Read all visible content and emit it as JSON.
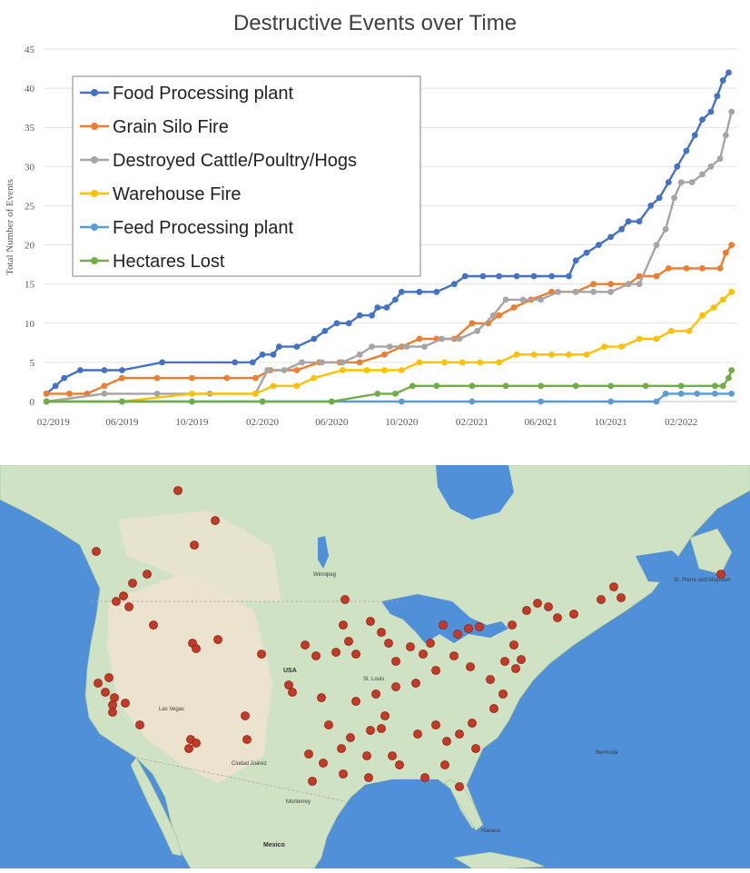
{
  "chart_data": {
    "type": "line",
    "title": "Destructive Events over Time",
    "ylabel": "Total Number of Events",
    "xlabel": "",
    "ylim": [
      0,
      45
    ],
    "yticks": [
      0,
      5,
      10,
      15,
      20,
      25,
      30,
      35,
      40,
      45
    ],
    "xlim": [
      "2019-01-15",
      "2022-05-10"
    ],
    "xticks": [
      "02/2019",
      "06/2019",
      "10/2019",
      "02/2020",
      "06/2020",
      "10/2020",
      "02/2021",
      "06/2021",
      "10/2021",
      "02/2022"
    ],
    "xtick_dates": [
      "2019-02-01",
      "2019-06-01",
      "2019-10-01",
      "2020-02-01",
      "2020-06-01",
      "2020-10-01",
      "2021-02-01",
      "2021-06-01",
      "2021-10-01",
      "2022-02-01"
    ],
    "grid": "horizontal",
    "legend_position": "top-left",
    "series": [
      {
        "name": "Food Processing plant",
        "color": "#4472c4",
        "points": [
          [
            "2019-01-20",
            1
          ],
          [
            "2019-02-05",
            2
          ],
          [
            "2019-02-20",
            3
          ],
          [
            "2019-03-20",
            4
          ],
          [
            "2019-05-01",
            4
          ],
          [
            "2019-06-01",
            4
          ],
          [
            "2019-08-10",
            5
          ],
          [
            "2019-12-15",
            5
          ],
          [
            "2020-01-15",
            5
          ],
          [
            "2020-02-01",
            6
          ],
          [
            "2020-02-20",
            6
          ],
          [
            "2020-03-01",
            7
          ],
          [
            "2020-04-01",
            7
          ],
          [
            "2020-05-01",
            8
          ],
          [
            "2020-05-20",
            9
          ],
          [
            "2020-06-10",
            10
          ],
          [
            "2020-07-01",
            10
          ],
          [
            "2020-07-20",
            11
          ],
          [
            "2020-08-10",
            11
          ],
          [
            "2020-08-20",
            12
          ],
          [
            "2020-09-05",
            12
          ],
          [
            "2020-09-20",
            13
          ],
          [
            "2020-10-01",
            14
          ],
          [
            "2020-11-01",
            14
          ],
          [
            "2020-12-01",
            14
          ],
          [
            "2021-01-01",
            15
          ],
          [
            "2021-01-20",
            16
          ],
          [
            "2021-02-20",
            16
          ],
          [
            "2021-03-20",
            16
          ],
          [
            "2021-04-20",
            16
          ],
          [
            "2021-05-20",
            16
          ],
          [
            "2021-06-20",
            16
          ],
          [
            "2021-07-20",
            16
          ],
          [
            "2021-08-01",
            18
          ],
          [
            "2021-08-20",
            19
          ],
          [
            "2021-09-10",
            20
          ],
          [
            "2021-10-01",
            21
          ],
          [
            "2021-10-20",
            22
          ],
          [
            "2021-11-01",
            23
          ],
          [
            "2021-11-20",
            23
          ],
          [
            "2021-12-10",
            25
          ],
          [
            "2021-12-25",
            26
          ],
          [
            "2022-01-10",
            28
          ],
          [
            "2022-01-25",
            30
          ],
          [
            "2022-02-10",
            32
          ],
          [
            "2022-02-25",
            34
          ],
          [
            "2022-03-10",
            36
          ],
          [
            "2022-03-25",
            37
          ],
          [
            "2022-04-05",
            39
          ],
          [
            "2022-04-15",
            41
          ],
          [
            "2022-04-25",
            42
          ]
        ]
      },
      {
        "name": "Grain Silo Fire",
        "color": "#ed7d31",
        "points": [
          [
            "2019-01-20",
            1
          ],
          [
            "2019-03-01",
            1
          ],
          [
            "2019-04-01",
            1
          ],
          [
            "2019-05-01",
            2
          ],
          [
            "2019-06-01",
            3
          ],
          [
            "2019-08-01",
            3
          ],
          [
            "2019-10-01",
            3
          ],
          [
            "2019-12-01",
            3
          ],
          [
            "2020-01-20",
            3
          ],
          [
            "2020-02-15",
            4
          ],
          [
            "2020-04-01",
            4
          ],
          [
            "2020-05-10",
            5
          ],
          [
            "2020-06-15",
            5
          ],
          [
            "2020-07-20",
            5
          ],
          [
            "2020-09-01",
            6
          ],
          [
            "2020-10-01",
            7
          ],
          [
            "2020-11-01",
            8
          ],
          [
            "2020-12-01",
            8
          ],
          [
            "2021-01-01",
            8
          ],
          [
            "2021-02-01",
            10
          ],
          [
            "2021-03-01",
            10
          ],
          [
            "2021-03-20",
            11
          ],
          [
            "2021-04-15",
            12
          ],
          [
            "2021-05-15",
            13
          ],
          [
            "2021-06-20",
            14
          ],
          [
            "2021-08-01",
            14
          ],
          [
            "2021-09-01",
            15
          ],
          [
            "2021-10-01",
            15
          ],
          [
            "2021-11-01",
            15
          ],
          [
            "2021-11-20",
            16
          ],
          [
            "2021-12-20",
            16
          ],
          [
            "2022-01-10",
            17
          ],
          [
            "2022-02-10",
            17
          ],
          [
            "2022-03-10",
            17
          ],
          [
            "2022-04-10",
            17
          ],
          [
            "2022-04-20",
            19
          ],
          [
            "2022-04-30",
            20
          ]
        ]
      },
      {
        "name": "Destroyed Cattle/Poultry/Hogs",
        "color": "#a5a5a5",
        "points": [
          [
            "2019-01-20",
            0
          ],
          [
            "2019-05-01",
            1
          ],
          [
            "2019-08-01",
            1
          ],
          [
            "2019-11-01",
            1
          ],
          [
            "2020-01-20",
            1
          ],
          [
            "2020-02-10",
            4
          ],
          [
            "2020-03-10",
            4
          ],
          [
            "2020-04-10",
            5
          ],
          [
            "2020-05-15",
            5
          ],
          [
            "2020-06-20",
            5
          ],
          [
            "2020-07-20",
            6
          ],
          [
            "2020-08-10",
            7
          ],
          [
            "2020-09-10",
            7
          ],
          [
            "2020-10-10",
            7
          ],
          [
            "2020-11-10",
            7
          ],
          [
            "2020-12-10",
            8
          ],
          [
            "2021-01-10",
            8
          ],
          [
            "2021-02-10",
            9
          ],
          [
            "2021-03-10",
            11
          ],
          [
            "2021-04-01",
            13
          ],
          [
            "2021-05-01",
            13
          ],
          [
            "2021-06-01",
            13
          ],
          [
            "2021-07-01",
            14
          ],
          [
            "2021-08-01",
            14
          ],
          [
            "2021-09-01",
            14
          ],
          [
            "2021-10-01",
            14
          ],
          [
            "2021-11-01",
            15
          ],
          [
            "2021-11-20",
            15
          ],
          [
            "2021-12-20",
            20
          ],
          [
            "2022-01-05",
            22
          ],
          [
            "2022-01-20",
            26
          ],
          [
            "2022-02-01",
            28
          ],
          [
            "2022-02-20",
            28
          ],
          [
            "2022-03-10",
            29
          ],
          [
            "2022-03-25",
            30
          ],
          [
            "2022-04-10",
            31
          ],
          [
            "2022-04-20",
            34
          ],
          [
            "2022-04-30",
            37
          ]
        ]
      },
      {
        "name": "Warehouse Fire",
        "color": "#ffc000",
        "points": [
          [
            "2019-01-20",
            0
          ],
          [
            "2019-06-01",
            0
          ],
          [
            "2019-10-01",
            1
          ],
          [
            "2020-01-20",
            1
          ],
          [
            "2020-02-20",
            2
          ],
          [
            "2020-04-01",
            2
          ],
          [
            "2020-05-01",
            3
          ],
          [
            "2020-06-20",
            4
          ],
          [
            "2020-08-01",
            4
          ],
          [
            "2020-09-01",
            4
          ],
          [
            "2020-10-01",
            4
          ],
          [
            "2020-11-01",
            5
          ],
          [
            "2020-12-15",
            5
          ],
          [
            "2021-01-15",
            5
          ],
          [
            "2021-02-15",
            5
          ],
          [
            "2021-03-20",
            5
          ],
          [
            "2021-04-20",
            6
          ],
          [
            "2021-05-20",
            6
          ],
          [
            "2021-06-20",
            6
          ],
          [
            "2021-07-20",
            6
          ],
          [
            "2021-08-20",
            6
          ],
          [
            "2021-09-20",
            7
          ],
          [
            "2021-10-20",
            7
          ],
          [
            "2021-11-20",
            8
          ],
          [
            "2021-12-20",
            8
          ],
          [
            "2022-01-15",
            9
          ],
          [
            "2022-02-15",
            9
          ],
          [
            "2022-03-10",
            11
          ],
          [
            "2022-03-30",
            12
          ],
          [
            "2022-04-15",
            13
          ],
          [
            "2022-04-30",
            14
          ]
        ]
      },
      {
        "name": "Feed Processing plant",
        "color": "#5b9bd5",
        "points": [
          [
            "2019-01-20",
            0
          ],
          [
            "2019-06-01",
            0
          ],
          [
            "2019-10-01",
            0
          ],
          [
            "2020-02-01",
            0
          ],
          [
            "2020-06-01",
            0
          ],
          [
            "2020-10-01",
            0
          ],
          [
            "2021-02-01",
            0
          ],
          [
            "2021-06-01",
            0
          ],
          [
            "2021-10-01",
            0
          ],
          [
            "2021-12-20",
            0
          ],
          [
            "2022-01-05",
            1
          ],
          [
            "2022-02-01",
            1
          ],
          [
            "2022-03-01",
            1
          ],
          [
            "2022-04-01",
            1
          ],
          [
            "2022-04-30",
            1
          ]
        ]
      },
      {
        "name": "Hectares Lost",
        "color": "#70ad47",
        "points": [
          [
            "2019-01-20",
            0
          ],
          [
            "2019-06-01",
            0
          ],
          [
            "2019-10-01",
            0
          ],
          [
            "2020-02-01",
            0
          ],
          [
            "2020-06-01",
            0
          ],
          [
            "2020-08-20",
            1
          ],
          [
            "2020-09-20",
            1
          ],
          [
            "2020-10-20",
            2
          ],
          [
            "2020-12-01",
            2
          ],
          [
            "2021-02-01",
            2
          ],
          [
            "2021-04-01",
            2
          ],
          [
            "2021-06-01",
            2
          ],
          [
            "2021-08-01",
            2
          ],
          [
            "2021-10-01",
            2
          ],
          [
            "2021-12-01",
            2
          ],
          [
            "2022-02-01",
            2
          ],
          [
            "2022-04-01",
            2
          ],
          [
            "2022-04-15",
            2
          ],
          [
            "2022-04-25",
            3
          ],
          [
            "2022-04-30",
            4
          ]
        ]
      }
    ]
  },
  "map": {
    "labels": {
      "usa": "USA",
      "mexico": "Mexico",
      "winnipeg": "Winnipeg",
      "st_louis": "St. Louis",
      "las_vegas": "Las Vegas",
      "ciudad_juarez": "Ciudad Juárez",
      "monterrey": "Monterrey",
      "havana": "Havana",
      "bermuda": "Bermuda",
      "st_pierre": "St. Pierre and Miquelon"
    },
    "colors": {
      "ocean": "#4f90d9",
      "land": "#cfe3c4",
      "arid": "#ece3cf",
      "marker": "#c43a28"
    }
  }
}
